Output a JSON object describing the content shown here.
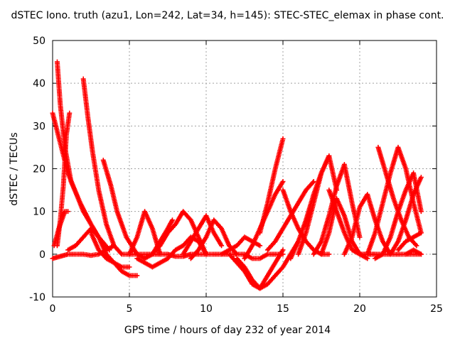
{
  "chart_data": {
    "type": "scatter",
    "title": "dSTEC Iono. truth (azu1, Lon=242, Lat=34, h=145): STEC-STEC_elemax in phase cont.",
    "xlabel": "GPS time / hours of day 232 of year 2014",
    "ylabel": "dSTEC  / TECUs",
    "xlim": [
      0,
      25
    ],
    "ylim": [
      -10,
      50
    ],
    "x_ticks": [
      0,
      5,
      10,
      15,
      20,
      25
    ],
    "y_ticks": [
      -10,
      0,
      10,
      20,
      30,
      40,
      50
    ],
    "grid": true,
    "marker": "+",
    "color": "#ff0000",
    "series": [
      {
        "x": [
          0.0,
          0.5,
          1.0,
          2.0,
          3.0,
          3.7
        ],
        "y": [
          33,
          26,
          19,
          10,
          4,
          1
        ]
      },
      {
        "x": [
          0.0,
          0.5,
          1.0,
          1.5,
          2.0,
          2.5,
          3.0,
          3.5,
          4.0
        ],
        "y": [
          -1,
          -0.5,
          0,
          0,
          0,
          -0.3,
          0,
          1,
          2
        ]
      },
      {
        "x": [
          0.1,
          0.4,
          0.8,
          1.0
        ],
        "y": [
          2,
          6,
          10,
          10
        ]
      },
      {
        "x": [
          0.3,
          0.5,
          0.8,
          1.2,
          1.8,
          2.5,
          3.0
        ],
        "y": [
          45,
          35,
          25,
          17,
          12,
          7,
          4
        ]
      },
      {
        "x": [
          0.3,
          0.5,
          0.7,
          0.9,
          1.1
        ],
        "y": [
          2,
          8,
          16,
          28,
          33
        ]
      },
      {
        "x": [
          1.0,
          1.5,
          2.0,
          2.5,
          3.0,
          3.5,
          4.0,
          4.5,
          5.0,
          5.5
        ],
        "y": [
          1,
          2,
          4,
          6,
          4,
          0,
          -2,
          -4,
          -5,
          -5
        ]
      },
      {
        "x": [
          2.0,
          2.3,
          2.6,
          3.0,
          3.5,
          4.0,
          4.5,
          5.0
        ],
        "y": [
          41,
          32,
          24,
          15,
          7,
          2,
          0,
          0
        ]
      },
      {
        "x": [
          2.5,
          3.0,
          3.5,
          4.0,
          4.5,
          5.0
        ],
        "y": [
          5,
          1,
          -1,
          -2,
          -3,
          -3
        ]
      },
      {
        "x": [
          3.3,
          3.8,
          4.2,
          4.8,
          5.5,
          6.0
        ],
        "y": [
          22,
          16,
          10,
          4,
          0,
          -1
        ]
      },
      {
        "x": [
          5.0,
          5.5,
          6.0,
          6.5,
          7.0,
          7.5,
          8.0,
          8.5,
          9.0,
          9.5,
          10.0
        ],
        "y": [
          0,
          0,
          0,
          0,
          0,
          0,
          -0.5,
          -0.5,
          0,
          0,
          0
        ]
      },
      {
        "x": [
          5.0,
          5.5,
          6.0,
          6.5,
          7.0
        ],
        "y": [
          0,
          4,
          10,
          6,
          0
        ]
      },
      {
        "x": [
          5.5,
          6.0,
          6.5,
          7.0,
          7.5
        ],
        "y": [
          -1,
          -2,
          -3,
          -2,
          -1
        ]
      },
      {
        "x": [
          6.0,
          6.5,
          7.0,
          7.5,
          8.0,
          8.5,
          9.0,
          9.5,
          10.0
        ],
        "y": [
          -1,
          0,
          2,
          5,
          7,
          10,
          8,
          4,
          0
        ]
      },
      {
        "x": [
          6.5,
          7.0,
          7.5,
          7.8
        ],
        "y": [
          0,
          3,
          6,
          8
        ]
      },
      {
        "x": [
          7.5,
          8.0,
          8.5,
          9.0,
          9.5,
          10.0
        ],
        "y": [
          -1,
          1,
          2,
          4,
          3,
          0
        ]
      },
      {
        "x": [
          8.5,
          9.0,
          9.5,
          10.0,
          10.5,
          11.0
        ],
        "y": [
          0,
          3,
          6,
          9,
          5,
          2
        ]
      },
      {
        "x": [
          9.0,
          9.5,
          10.0,
          10.5,
          11.0,
          11.5,
          12.0
        ],
        "y": [
          -1,
          1,
          4,
          8,
          6,
          2,
          0
        ]
      },
      {
        "x": [
          10.0,
          10.5,
          11.0,
          11.5,
          12.0,
          12.5,
          13.0,
          13.5,
          14.0,
          14.5,
          15.0
        ],
        "y": [
          0,
          0,
          0,
          0,
          0,
          0,
          -1,
          -1,
          0,
          0,
          0
        ]
      },
      {
        "x": [
          11.5,
          12.0,
          12.5,
          13.0,
          13.5,
          14.0,
          14.5,
          15.0
        ],
        "y": [
          0,
          -2,
          -4,
          -7,
          -8,
          -5,
          -2,
          1
        ]
      },
      {
        "x": [
          12.0,
          12.5,
          13.0,
          13.5,
          14.0,
          14.5,
          15.0,
          15.5,
          16.0
        ],
        "y": [
          -1,
          -3,
          -6,
          -8,
          -7,
          -5,
          -3,
          0,
          3
        ]
      },
      {
        "x": [
          11.0,
          11.5,
          12.0,
          12.5,
          13.0,
          13.5
        ],
        "y": [
          0,
          1,
          2,
          4,
          3,
          2
        ]
      },
      {
        "x": [
          12.5,
          13.0,
          13.5,
          14.0,
          14.5,
          15.0
        ],
        "y": [
          -1,
          2,
          6,
          10,
          14,
          17
        ]
      },
      {
        "x": [
          13.5,
          14.0,
          14.5,
          15.0
        ],
        "y": [
          5,
          12,
          20,
          27
        ]
      },
      {
        "x": [
          14.0,
          14.5,
          15.0,
          15.5,
          16.0,
          16.5,
          17.0
        ],
        "y": [
          1,
          3,
          6,
          9,
          12,
          15,
          17
        ]
      },
      {
        "x": [
          15.0,
          15.5,
          16.0,
          16.5,
          17.0,
          17.5,
          18.0
        ],
        "y": [
          15,
          10,
          6,
          3,
          1,
          0,
          0
        ]
      },
      {
        "x": [
          15.5,
          16.0,
          16.5,
          17.0,
          17.5,
          18.0
        ],
        "y": [
          -1,
          3,
          8,
          14,
          19,
          23
        ]
      },
      {
        "x": [
          16.0,
          16.5,
          17.0,
          17.5,
          18.0,
          18.5
        ],
        "y": [
          0,
          5,
          12,
          19,
          23,
          15
        ]
      },
      {
        "x": [
          17.0,
          17.5,
          18.0,
          18.5,
          19.0,
          19.5,
          20.0
        ],
        "y": [
          0,
          3,
          9,
          16,
          21,
          12,
          4
        ]
      },
      {
        "x": [
          17.5,
          18.0,
          18.5,
          19.0,
          19.5,
          20.0,
          20.5
        ],
        "y": [
          0,
          5,
          13,
          9,
          3,
          0,
          -1
        ]
      },
      {
        "x": [
          18.0,
          18.5,
          19.0,
          19.5,
          20.0,
          20.5,
          21.0
        ],
        "y": [
          15,
          10,
          5,
          1,
          0,
          0,
          0
        ]
      },
      {
        "x": [
          19.0,
          19.5,
          20.0,
          20.5,
          21.0,
          21.5,
          22.0
        ],
        "y": [
          0,
          4,
          11,
          14,
          8,
          3,
          0
        ]
      },
      {
        "x": [
          20.0,
          20.5,
          21.0,
          21.5,
          22.0,
          22.5,
          23.0,
          23.5,
          24.0
        ],
        "y": [
          0,
          0,
          0,
          0,
          0,
          0,
          0,
          0,
          0
        ]
      },
      {
        "x": [
          20.5,
          21.0,
          21.5,
          22.0,
          22.5,
          23.0,
          23.5,
          24.0
        ],
        "y": [
          0,
          5,
          12,
          19,
          25,
          20,
          12,
          5
        ]
      },
      {
        "x": [
          21.0,
          21.5,
          22.0,
          22.5,
          23.0,
          23.5,
          24.0
        ],
        "y": [
          -1,
          0,
          4,
          10,
          15,
          19,
          10
        ]
      },
      {
        "x": [
          21.2,
          21.7,
          22.2,
          22.7,
          23.2,
          23.7
        ],
        "y": [
          25,
          19,
          13,
          8,
          4,
          2
        ]
      },
      {
        "x": [
          22.0,
          22.5,
          23.0,
          23.5,
          24.0
        ],
        "y": [
          0,
          3,
          8,
          14,
          18
        ]
      },
      {
        "x": [
          22.5,
          23.0,
          23.5,
          24.0
        ],
        "y": [
          1,
          3,
          4,
          5
        ]
      },
      {
        "x": [
          23.0,
          23.5,
          24.0
        ],
        "y": [
          0,
          1,
          0
        ]
      }
    ]
  }
}
